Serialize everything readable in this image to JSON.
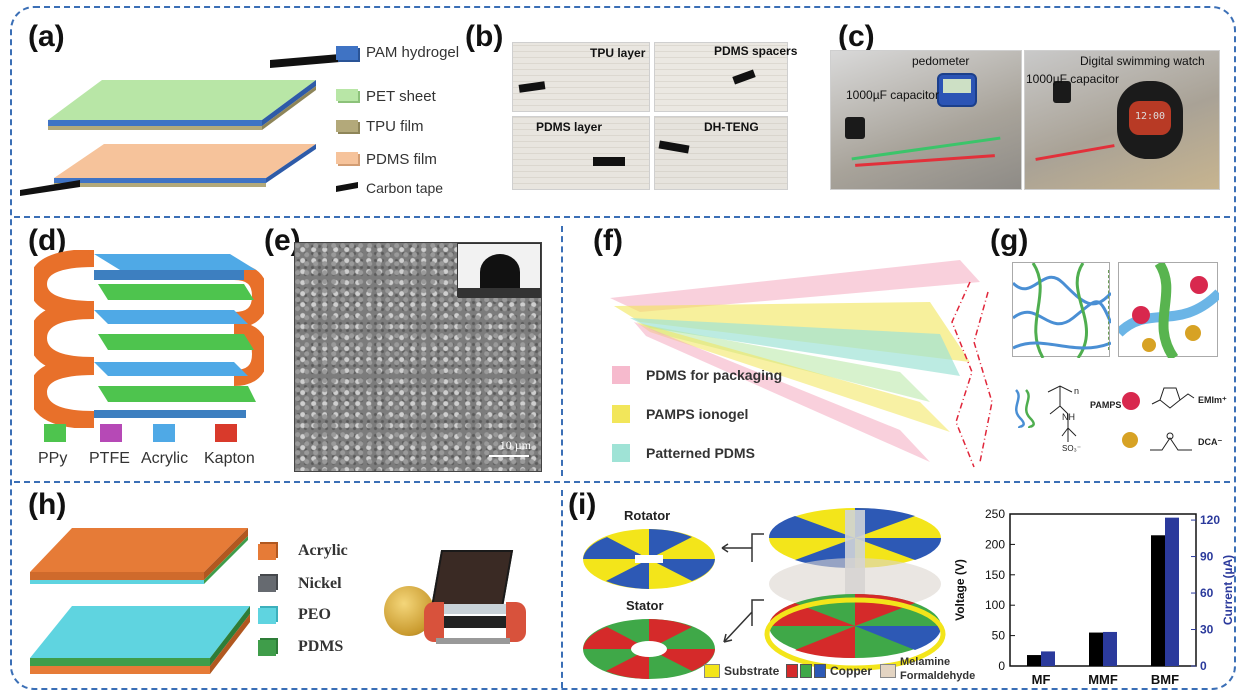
{
  "panels": {
    "a": {
      "label": "(a)",
      "legend": [
        "PAM hydrogel",
        "PET sheet",
        "TPU film",
        "PDMS film",
        "Carbon tape"
      ],
      "colors": {
        "pam": "#3f73c4",
        "pet": "#b8e6a6",
        "tpu": "#b3a97a",
        "pdms": "#f6c39b",
        "carbon": "#111111"
      }
    },
    "b": {
      "label": "(b)",
      "tags": [
        "TPU layer",
        "PDMS spacers",
        "PDMS layer",
        "DH-TENG"
      ]
    },
    "c": {
      "label": "(c)",
      "tags": [
        "pedometer",
        "1000µF capacitor",
        "1000µF capacitor",
        "Digital swimming watch"
      ],
      "watch_text": "12:00"
    },
    "d": {
      "label": "(d)",
      "legend": [
        "PPy",
        "PTFE",
        "Acrylic",
        "Kapton"
      ],
      "colors": {
        "ppy": "#4ec44e",
        "ptfe": "#b649b6",
        "acrylic": "#4fa9e6",
        "kapton": "#d93a2b"
      }
    },
    "e": {
      "label": "(e)",
      "scale": "10 µm"
    },
    "f": {
      "label": "(f)",
      "legend": [
        "PDMS for packaging",
        "PAMPS ionogel",
        "Patterned PDMS"
      ],
      "colors": {
        "pdms_pack": "#f4a9c0",
        "pamps": "#f2e65a",
        "patterned": "#9fe3d6"
      }
    },
    "g": {
      "label": "(g)",
      "chem": {
        "pamps": "PAMPS",
        "emim": "EMIm⁺",
        "dca": "DCA⁻",
        "nh": "NH",
        "so3": "SO₃⁻",
        "n": "n"
      }
    },
    "h": {
      "label": "(h)",
      "legend": [
        "Acrylic",
        "Nickel",
        "PEO",
        "PDMS"
      ],
      "colors": {
        "acrylic": "#e67b37",
        "nickel": "#666a70",
        "peo": "#5fd4e0",
        "pdms": "#3f9d4a"
      }
    },
    "i": {
      "label": "(i)",
      "rotator": "Rotator",
      "stator": "Stator",
      "legend": {
        "substrate": "Substrate",
        "copper": "Copper",
        "melamine_line1": "Melamine",
        "melamine_line2": "Formaldehyde"
      },
      "colors": {
        "substrate": "#f3e51a",
        "cu_red": "#d52a2a",
        "cu_green": "#3fa848",
        "cu_blue": "#2d59b5",
        "melamine": "#e3d4c2"
      }
    }
  },
  "chart_data": {
    "type": "bar",
    "categories": [
      "MF",
      "MMF",
      "BMF"
    ],
    "series": [
      {
        "name": "Voltage (V)",
        "axis": "left",
        "color": "#000000",
        "values": [
          18,
          55,
          215
        ]
      },
      {
        "name": "Current (µA)",
        "axis": "right",
        "color": "#2b3a9c",
        "values": [
          12,
          28,
          122
        ]
      }
    ],
    "ylabel": "Voltage (V)",
    "ylabel_right": "Current (µA)",
    "ylim": [
      0,
      250
    ],
    "ylim_right": [
      0,
      125
    ],
    "yticks": [
      "0",
      "50",
      "100",
      "150",
      "200",
      "250"
    ],
    "yticks_right": [
      "0",
      "30",
      "60",
      "90",
      "120"
    ]
  }
}
